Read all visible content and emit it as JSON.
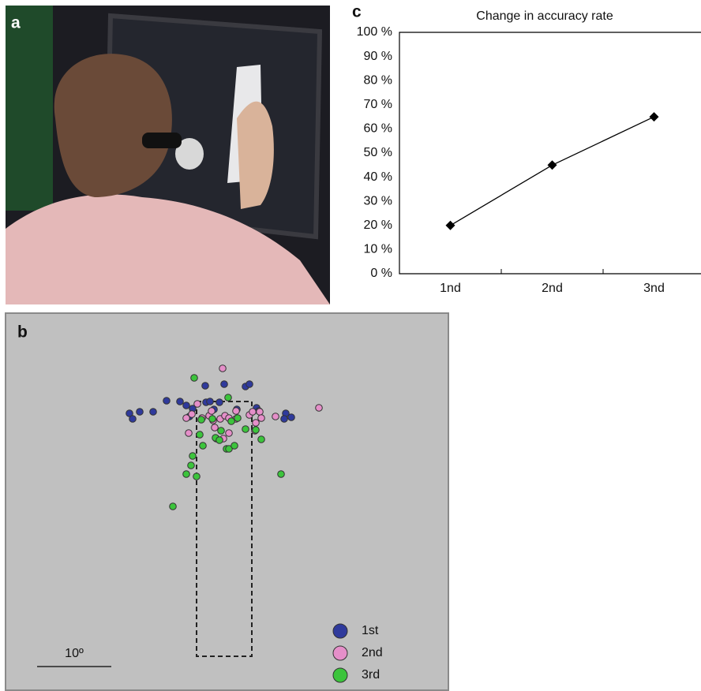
{
  "photo": {
    "panel_label": "a"
  },
  "chart_data": [
    {
      "type": "line",
      "panel_label": "c",
      "title": "Change in accuracy rate",
      "categories": [
        "1nd",
        "2nd",
        "3nd"
      ],
      "values": [
        20,
        45,
        65
      ],
      "color": "#000000",
      "ylim": [
        0,
        100
      ],
      "yticks": [
        {
          "value": 0,
          "label": "0 %"
        },
        {
          "value": 10,
          "label": "10 %"
        },
        {
          "value": 20,
          "label": "20 %"
        },
        {
          "value": 30,
          "label": "30 %"
        },
        {
          "value": 40,
          "label": "40 %"
        },
        {
          "value": 50,
          "label": "50 %"
        },
        {
          "value": 60,
          "label": "60 %"
        },
        {
          "value": 70,
          "label": "70 %"
        },
        {
          "value": 80,
          "label": "80 %"
        },
        {
          "value": 90,
          "label": "90 %"
        },
        {
          "value": 100,
          "label": "100 %"
        }
      ]
    },
    {
      "type": "scatter",
      "panel_label": "b",
      "scale_label": "10º",
      "legend": "lower right",
      "xlim": [
        0,
        561
      ],
      "ylim": [
        0,
        478
      ],
      "series": [
        {
          "name": "1st",
          "color": "#2f3a9c",
          "x": [
            157,
            161,
            170,
            187,
            204,
            221,
            229,
            237,
            253,
            254,
            259,
            264,
            271,
            277,
            304,
            309,
            318,
            321,
            355,
            353,
            362,
            293,
            233
          ],
          "y": [
            351,
            344,
            353,
            353,
            367,
            366,
            361,
            357,
            386,
            365,
            366,
            356,
            365,
            388,
            385,
            388,
            358,
            354,
            351,
            344,
            346,
            356,
            347
          ]
        },
        {
          "name": "2nd",
          "color": "#e58fc9",
          "x": [
            275,
            243,
            236,
            229,
            232,
            249,
            258,
            263,
            265,
            272,
            278,
            283,
            292,
            292,
            309,
            313,
            322,
            324,
            317,
            316,
            342,
            397,
            267,
            276,
            283,
            261
          ],
          "y": [
            408,
            363,
            350,
            345,
            326,
            345,
            348,
            342,
            333,
            344,
            348,
            345,
            354,
            344,
            349,
            353,
            353,
            345,
            339,
            329,
            347,
            358,
            319,
            319,
            326,
            354
          ]
        },
        {
          "name": "3rd",
          "color": "#3cc43c",
          "x": [
            239,
            282,
            248,
            246,
            262,
            266,
            273,
            286,
            294,
            304,
            317,
            324,
            250,
            271,
            280,
            283,
            290,
            237,
            235,
            229,
            242,
            349,
            212
          ],
          "y": [
            396,
            371,
            343,
            324,
            344,
            320,
            329,
            341,
            345,
            331,
            330,
            318,
            310,
            317,
            306,
            306,
            310,
            297,
            285,
            274,
            271,
            274,
            233
          ]
        }
      ]
    }
  ]
}
